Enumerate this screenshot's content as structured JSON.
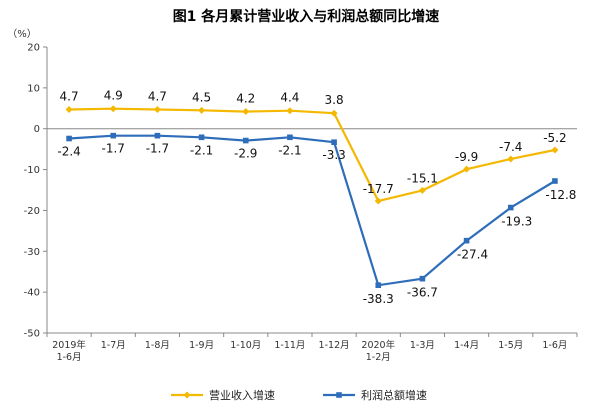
{
  "chart_data": {
    "type": "line",
    "title": "图1  各月累计营业收入与利润总额同比增速",
    "y_unit": "（%）",
    "ylim": [
      -50,
      20
    ],
    "yticks": [
      "20",
      "10",
      "0",
      "-10",
      "-20",
      "-30",
      "-40",
      "-50"
    ],
    "ytick_values": [
      20,
      10,
      0,
      -10,
      -20,
      -30,
      -40,
      -50
    ],
    "categories": [
      [
        "2019年",
        "1-6月"
      ],
      [
        "1-7月"
      ],
      [
        "1-8月"
      ],
      [
        "1-9月"
      ],
      [
        "1-10月"
      ],
      [
        "1-11月"
      ],
      [
        "1-12月"
      ],
      [
        "2020年",
        "1-2月"
      ],
      [
        "1-3月"
      ],
      [
        "1-4月"
      ],
      [
        "1-5月"
      ],
      [
        "1-6月"
      ]
    ],
    "series": [
      {
        "name": "营业收入增速",
        "color": "#F5B800",
        "values": [
          4.7,
          4.9,
          4.7,
          4.5,
          4.2,
          4.4,
          3.8,
          -17.7,
          -15.1,
          -9.9,
          -7.4,
          -5.2
        ],
        "labels": [
          "4.7",
          "4.9",
          "4.7",
          "4.5",
          "4.2",
          "4.4",
          "3.8",
          "-17.7",
          "-15.1",
          "-9.9",
          "-7.4",
          "-5.2"
        ]
      },
      {
        "name": "利润总额增速",
        "color": "#2E6DB9",
        "values": [
          -2.4,
          -1.7,
          -1.7,
          -2.1,
          -2.9,
          -2.1,
          -3.3,
          -38.3,
          -36.7,
          -27.4,
          -19.3,
          -12.8
        ],
        "labels": [
          "-2.4",
          "-1.7",
          "-1.7",
          "-2.1",
          "-2.9",
          "-2.1",
          "-3.3",
          "-38.3",
          "-36.7",
          "-27.4",
          "-19.3",
          "-12.8"
        ]
      }
    ],
    "grid": false,
    "legend_position": "bottom"
  }
}
